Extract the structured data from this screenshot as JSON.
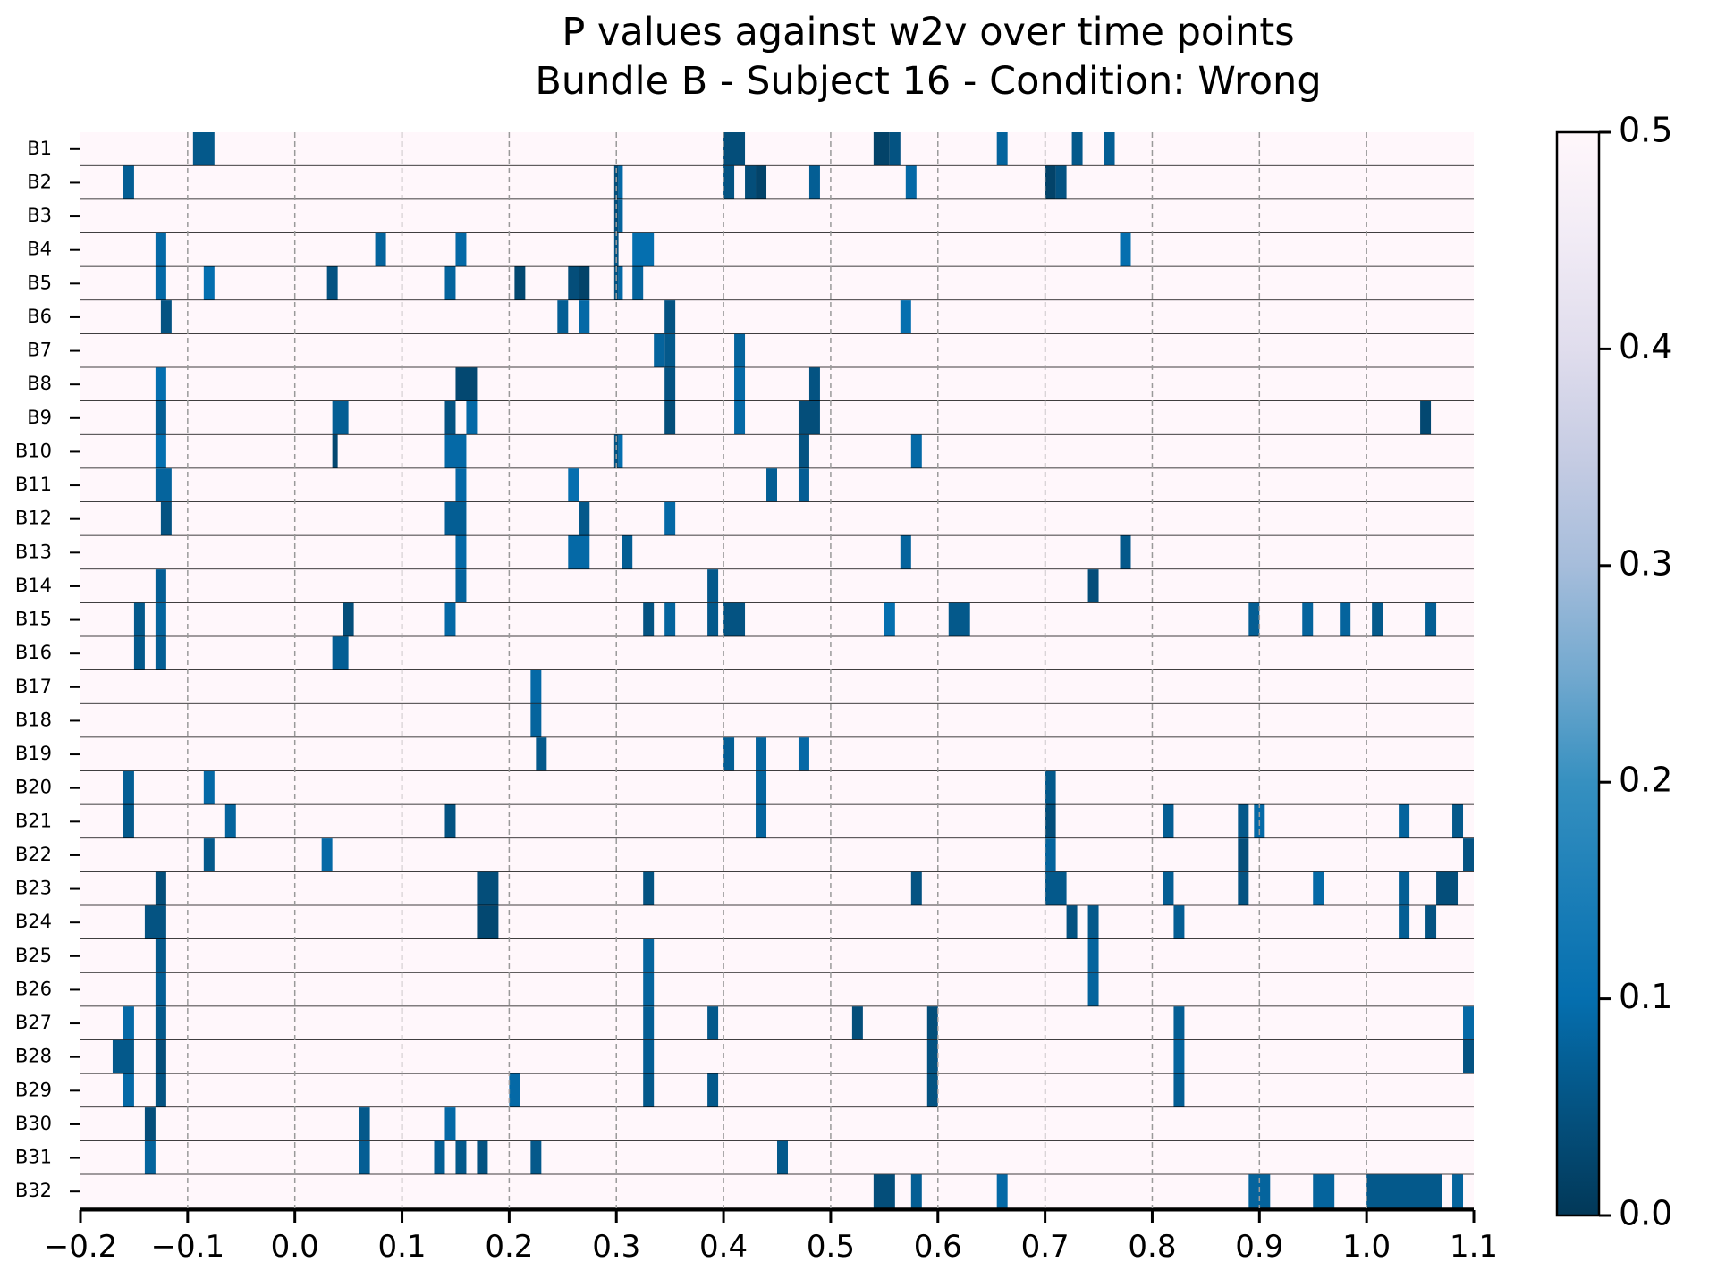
{
  "chart_data": {
    "type": "heatmap",
    "title_lines": [
      "P values against w2v over time points",
      "Bundle B - Subject 16 - Condition: Wrong"
    ],
    "xlim": [
      -0.2,
      1.1
    ],
    "x_ticks": [
      -0.2,
      -0.1,
      0.0,
      0.1,
      0.2,
      0.3,
      0.4,
      0.5,
      0.6,
      0.7,
      0.8,
      0.9,
      1.0,
      1.1
    ],
    "x_tick_labels": [
      "−0.2",
      "−0.1",
      "0.0",
      "0.1",
      "0.2",
      "0.3",
      "0.4",
      "0.5",
      "0.6",
      "0.7",
      "0.8",
      "0.9",
      "1.0",
      "1.1"
    ],
    "grid_vertical_dashed_at": [
      -0.1,
      0.0,
      0.1,
      0.2,
      0.3,
      0.4,
      0.5,
      0.6,
      0.7,
      0.8,
      0.9,
      1.0
    ],
    "colorbar": {
      "range": [
        0.0,
        0.5
      ],
      "ticks": [
        0.0,
        0.1,
        0.2,
        0.3,
        0.4,
        0.5
      ],
      "tick_labels": [
        "0.0",
        "0.1",
        "0.2",
        "0.3",
        "0.4",
        "0.5"
      ],
      "colormap": "PuBu_r"
    },
    "background_value": 0.5,
    "rows": [
      {
        "label": "B1",
        "cells": [
          [
            -0.095,
            -0.075,
            0.06
          ],
          [
            0.4,
            0.42,
            0.04
          ],
          [
            0.54,
            0.555,
            0.02
          ],
          [
            0.555,
            0.565,
            0.05
          ],
          [
            0.655,
            0.665,
            0.08
          ],
          [
            0.725,
            0.735,
            0.06
          ],
          [
            0.755,
            0.765,
            0.07
          ]
        ]
      },
      {
        "label": "B2",
        "cells": [
          [
            -0.16,
            -0.15,
            0.07
          ],
          [
            0.298,
            0.302,
            0.04
          ],
          [
            0.302,
            0.306,
            0.09
          ],
          [
            0.4,
            0.41,
            0.05
          ],
          [
            0.42,
            0.43,
            0.04
          ],
          [
            0.43,
            0.44,
            0.02
          ],
          [
            0.48,
            0.49,
            0.07
          ],
          [
            0.57,
            0.58,
            0.09
          ],
          [
            0.7,
            0.71,
            0.02
          ],
          [
            0.71,
            0.72,
            0.05
          ]
        ]
      },
      {
        "label": "B3",
        "cells": [
          [
            0.298,
            0.302,
            0.04
          ],
          [
            0.302,
            0.306,
            0.08
          ]
        ]
      },
      {
        "label": "B4",
        "cells": [
          [
            -0.13,
            -0.12,
            0.09
          ],
          [
            0.075,
            0.085,
            0.08
          ],
          [
            0.15,
            0.16,
            0.09
          ],
          [
            0.298,
            0.302,
            0.05
          ],
          [
            0.315,
            0.335,
            0.1
          ],
          [
            0.77,
            0.78,
            0.1
          ]
        ]
      },
      {
        "label": "B5",
        "cells": [
          [
            -0.13,
            -0.12,
            0.09
          ],
          [
            -0.085,
            -0.075,
            0.1
          ],
          [
            0.03,
            0.04,
            0.05
          ],
          [
            0.14,
            0.15,
            0.08
          ],
          [
            0.205,
            0.215,
            0.03
          ],
          [
            0.255,
            0.265,
            0.04
          ],
          [
            0.265,
            0.275,
            0.02
          ],
          [
            0.298,
            0.302,
            0.05
          ],
          [
            0.302,
            0.306,
            0.09
          ],
          [
            0.315,
            0.325,
            0.08
          ]
        ]
      },
      {
        "label": "B6",
        "cells": [
          [
            -0.125,
            -0.115,
            0.05
          ],
          [
            0.245,
            0.255,
            0.07
          ],
          [
            0.265,
            0.275,
            0.09
          ],
          [
            0.345,
            0.355,
            0.05
          ],
          [
            0.565,
            0.575,
            0.1
          ]
        ]
      },
      {
        "label": "B7",
        "cells": [
          [
            0.335,
            0.345,
            0.08
          ],
          [
            0.345,
            0.355,
            0.06
          ],
          [
            0.41,
            0.42,
            0.08
          ]
        ]
      },
      {
        "label": "B8",
        "cells": [
          [
            -0.13,
            -0.12,
            0.1
          ],
          [
            0.15,
            0.17,
            0.03
          ],
          [
            0.345,
            0.355,
            0.05
          ],
          [
            0.41,
            0.42,
            0.09
          ],
          [
            0.48,
            0.49,
            0.05
          ]
        ]
      },
      {
        "label": "B9",
        "cells": [
          [
            -0.13,
            -0.12,
            0.07
          ],
          [
            0.035,
            0.05,
            0.07
          ],
          [
            0.14,
            0.15,
            0.05
          ],
          [
            0.16,
            0.17,
            0.09
          ],
          [
            0.345,
            0.355,
            0.04
          ],
          [
            0.41,
            0.42,
            0.09
          ],
          [
            0.47,
            0.49,
            0.04
          ],
          [
            1.05,
            1.06,
            0.03
          ]
        ]
      },
      {
        "label": "B10",
        "cells": [
          [
            -0.13,
            -0.12,
            0.1
          ],
          [
            0.035,
            0.04,
            0.03
          ],
          [
            0.14,
            0.16,
            0.09
          ],
          [
            0.298,
            0.302,
            0.05
          ],
          [
            0.302,
            0.306,
            0.1
          ],
          [
            0.47,
            0.48,
            0.05
          ],
          [
            0.575,
            0.585,
            0.09
          ]
        ]
      },
      {
        "label": "B11",
        "cells": [
          [
            -0.13,
            -0.115,
            0.08
          ],
          [
            0.15,
            0.16,
            0.09
          ],
          [
            0.255,
            0.265,
            0.1
          ],
          [
            0.44,
            0.45,
            0.07
          ],
          [
            0.47,
            0.48,
            0.07
          ]
        ]
      },
      {
        "label": "B12",
        "cells": [
          [
            -0.125,
            -0.115,
            0.05
          ],
          [
            0.14,
            0.16,
            0.07
          ],
          [
            0.265,
            0.275,
            0.06
          ],
          [
            0.345,
            0.355,
            0.09
          ]
        ]
      },
      {
        "label": "B13",
        "cells": [
          [
            0.15,
            0.16,
            0.09
          ],
          [
            0.255,
            0.275,
            0.09
          ],
          [
            0.305,
            0.315,
            0.07
          ],
          [
            0.565,
            0.575,
            0.08
          ],
          [
            0.77,
            0.78,
            0.06
          ]
        ]
      },
      {
        "label": "B14",
        "cells": [
          [
            -0.13,
            -0.12,
            0.07
          ],
          [
            0.15,
            0.16,
            0.08
          ],
          [
            0.385,
            0.395,
            0.06
          ],
          [
            0.74,
            0.75,
            0.04
          ]
        ]
      },
      {
        "label": "B15",
        "cells": [
          [
            -0.15,
            -0.14,
            0.06
          ],
          [
            -0.13,
            -0.12,
            0.08
          ],
          [
            0.045,
            0.055,
            0.04
          ],
          [
            0.14,
            0.15,
            0.09
          ],
          [
            0.325,
            0.335,
            0.05
          ],
          [
            0.345,
            0.355,
            0.08
          ],
          [
            0.385,
            0.395,
            0.06
          ],
          [
            0.4,
            0.42,
            0.05
          ],
          [
            0.55,
            0.56,
            0.1
          ],
          [
            0.61,
            0.63,
            0.06
          ],
          [
            0.89,
            0.9,
            0.07
          ],
          [
            0.94,
            0.95,
            0.08
          ],
          [
            0.975,
            0.985,
            0.08
          ],
          [
            1.005,
            1.015,
            0.06
          ],
          [
            1.055,
            1.065,
            0.07
          ]
        ]
      },
      {
        "label": "B16",
        "cells": [
          [
            -0.15,
            -0.14,
            0.06
          ],
          [
            -0.13,
            -0.12,
            0.07
          ],
          [
            0.035,
            0.05,
            0.07
          ]
        ]
      },
      {
        "label": "B17",
        "cells": [
          [
            0.22,
            0.23,
            0.09
          ]
        ]
      },
      {
        "label": "B18",
        "cells": [
          [
            0.22,
            0.23,
            0.08
          ]
        ]
      },
      {
        "label": "B19",
        "cells": [
          [
            0.225,
            0.235,
            0.06
          ],
          [
            0.4,
            0.41,
            0.07
          ],
          [
            0.43,
            0.44,
            0.08
          ],
          [
            0.47,
            0.48,
            0.09
          ]
        ]
      },
      {
        "label": "B20",
        "cells": [
          [
            -0.16,
            -0.15,
            0.07
          ],
          [
            -0.085,
            -0.075,
            0.09
          ],
          [
            0.43,
            0.44,
            0.08
          ],
          [
            0.7,
            0.71,
            0.06
          ]
        ]
      },
      {
        "label": "B21",
        "cells": [
          [
            -0.16,
            -0.15,
            0.06
          ],
          [
            -0.065,
            -0.055,
            0.08
          ],
          [
            0.14,
            0.15,
            0.05
          ],
          [
            0.43,
            0.44,
            0.08
          ],
          [
            0.7,
            0.71,
            0.04
          ],
          [
            0.81,
            0.82,
            0.07
          ],
          [
            0.88,
            0.89,
            0.06
          ],
          [
            0.895,
            0.905,
            0.09
          ],
          [
            1.03,
            1.04,
            0.08
          ],
          [
            1.08,
            1.09,
            0.06
          ]
        ]
      },
      {
        "label": "B22",
        "cells": [
          [
            -0.085,
            -0.075,
            0.06
          ],
          [
            0.025,
            0.035,
            0.09
          ],
          [
            0.7,
            0.71,
            0.08
          ],
          [
            0.88,
            0.89,
            0.04
          ],
          [
            1.09,
            1.1,
            0.05
          ]
        ]
      },
      {
        "label": "B23",
        "cells": [
          [
            -0.13,
            -0.12,
            0.04
          ],
          [
            0.17,
            0.19,
            0.04
          ],
          [
            0.325,
            0.335,
            0.05
          ],
          [
            0.575,
            0.585,
            0.05
          ],
          [
            0.7,
            0.72,
            0.06
          ],
          [
            0.81,
            0.82,
            0.07
          ],
          [
            0.88,
            0.89,
            0.05
          ],
          [
            0.95,
            0.96,
            0.09
          ],
          [
            1.03,
            1.04,
            0.07
          ],
          [
            1.065,
            1.085,
            0.04
          ]
        ]
      },
      {
        "label": "B24",
        "cells": [
          [
            -0.14,
            -0.12,
            0.05
          ],
          [
            0.17,
            0.19,
            0.03
          ],
          [
            0.72,
            0.73,
            0.05
          ],
          [
            0.74,
            0.75,
            0.06
          ],
          [
            0.82,
            0.83,
            0.07
          ],
          [
            1.03,
            1.04,
            0.07
          ],
          [
            1.055,
            1.065,
            0.05
          ]
        ]
      },
      {
        "label": "B25",
        "cells": [
          [
            -0.13,
            -0.12,
            0.06
          ],
          [
            0.325,
            0.335,
            0.08
          ],
          [
            0.74,
            0.75,
            0.08
          ]
        ]
      },
      {
        "label": "B26",
        "cells": [
          [
            -0.13,
            -0.12,
            0.07
          ],
          [
            0.325,
            0.335,
            0.08
          ],
          [
            0.74,
            0.75,
            0.08
          ]
        ]
      },
      {
        "label": "B27",
        "cells": [
          [
            -0.16,
            -0.15,
            0.09
          ],
          [
            -0.13,
            -0.12,
            0.06
          ],
          [
            0.325,
            0.335,
            0.07
          ],
          [
            0.385,
            0.395,
            0.06
          ],
          [
            0.52,
            0.53,
            0.04
          ],
          [
            0.59,
            0.6,
            0.04
          ],
          [
            0.82,
            0.83,
            0.07
          ],
          [
            1.09,
            1.1,
            0.09
          ]
        ]
      },
      {
        "label": "B28",
        "cells": [
          [
            -0.17,
            -0.15,
            0.06
          ],
          [
            -0.13,
            -0.12,
            0.04
          ],
          [
            0.325,
            0.335,
            0.07
          ],
          [
            0.59,
            0.6,
            0.05
          ],
          [
            0.82,
            0.83,
            0.08
          ],
          [
            1.09,
            1.1,
            0.05
          ]
        ]
      },
      {
        "label": "B29",
        "cells": [
          [
            -0.16,
            -0.15,
            0.09
          ],
          [
            -0.13,
            -0.12,
            0.05
          ],
          [
            0.2,
            0.21,
            0.09
          ],
          [
            0.325,
            0.335,
            0.06
          ],
          [
            0.385,
            0.395,
            0.06
          ],
          [
            0.59,
            0.6,
            0.05
          ],
          [
            0.82,
            0.83,
            0.07
          ]
        ]
      },
      {
        "label": "B30",
        "cells": [
          [
            -0.14,
            -0.13,
            0.04
          ],
          [
            0.06,
            0.07,
            0.06
          ],
          [
            0.14,
            0.15,
            0.09
          ]
        ]
      },
      {
        "label": "B31",
        "cells": [
          [
            -0.14,
            -0.13,
            0.08
          ],
          [
            0.06,
            0.07,
            0.07
          ],
          [
            0.13,
            0.14,
            0.07
          ],
          [
            0.15,
            0.16,
            0.06
          ],
          [
            0.17,
            0.18,
            0.05
          ],
          [
            0.22,
            0.23,
            0.06
          ],
          [
            0.45,
            0.46,
            0.06
          ]
        ]
      },
      {
        "label": "B32",
        "cells": [
          [
            0.54,
            0.56,
            0.04
          ],
          [
            0.575,
            0.585,
            0.07
          ],
          [
            0.655,
            0.665,
            0.09
          ],
          [
            0.89,
            0.91,
            0.08
          ],
          [
            0.95,
            0.97,
            0.08
          ],
          [
            1.0,
            1.07,
            0.06
          ],
          [
            1.08,
            1.09,
            0.08
          ]
        ]
      }
    ]
  }
}
